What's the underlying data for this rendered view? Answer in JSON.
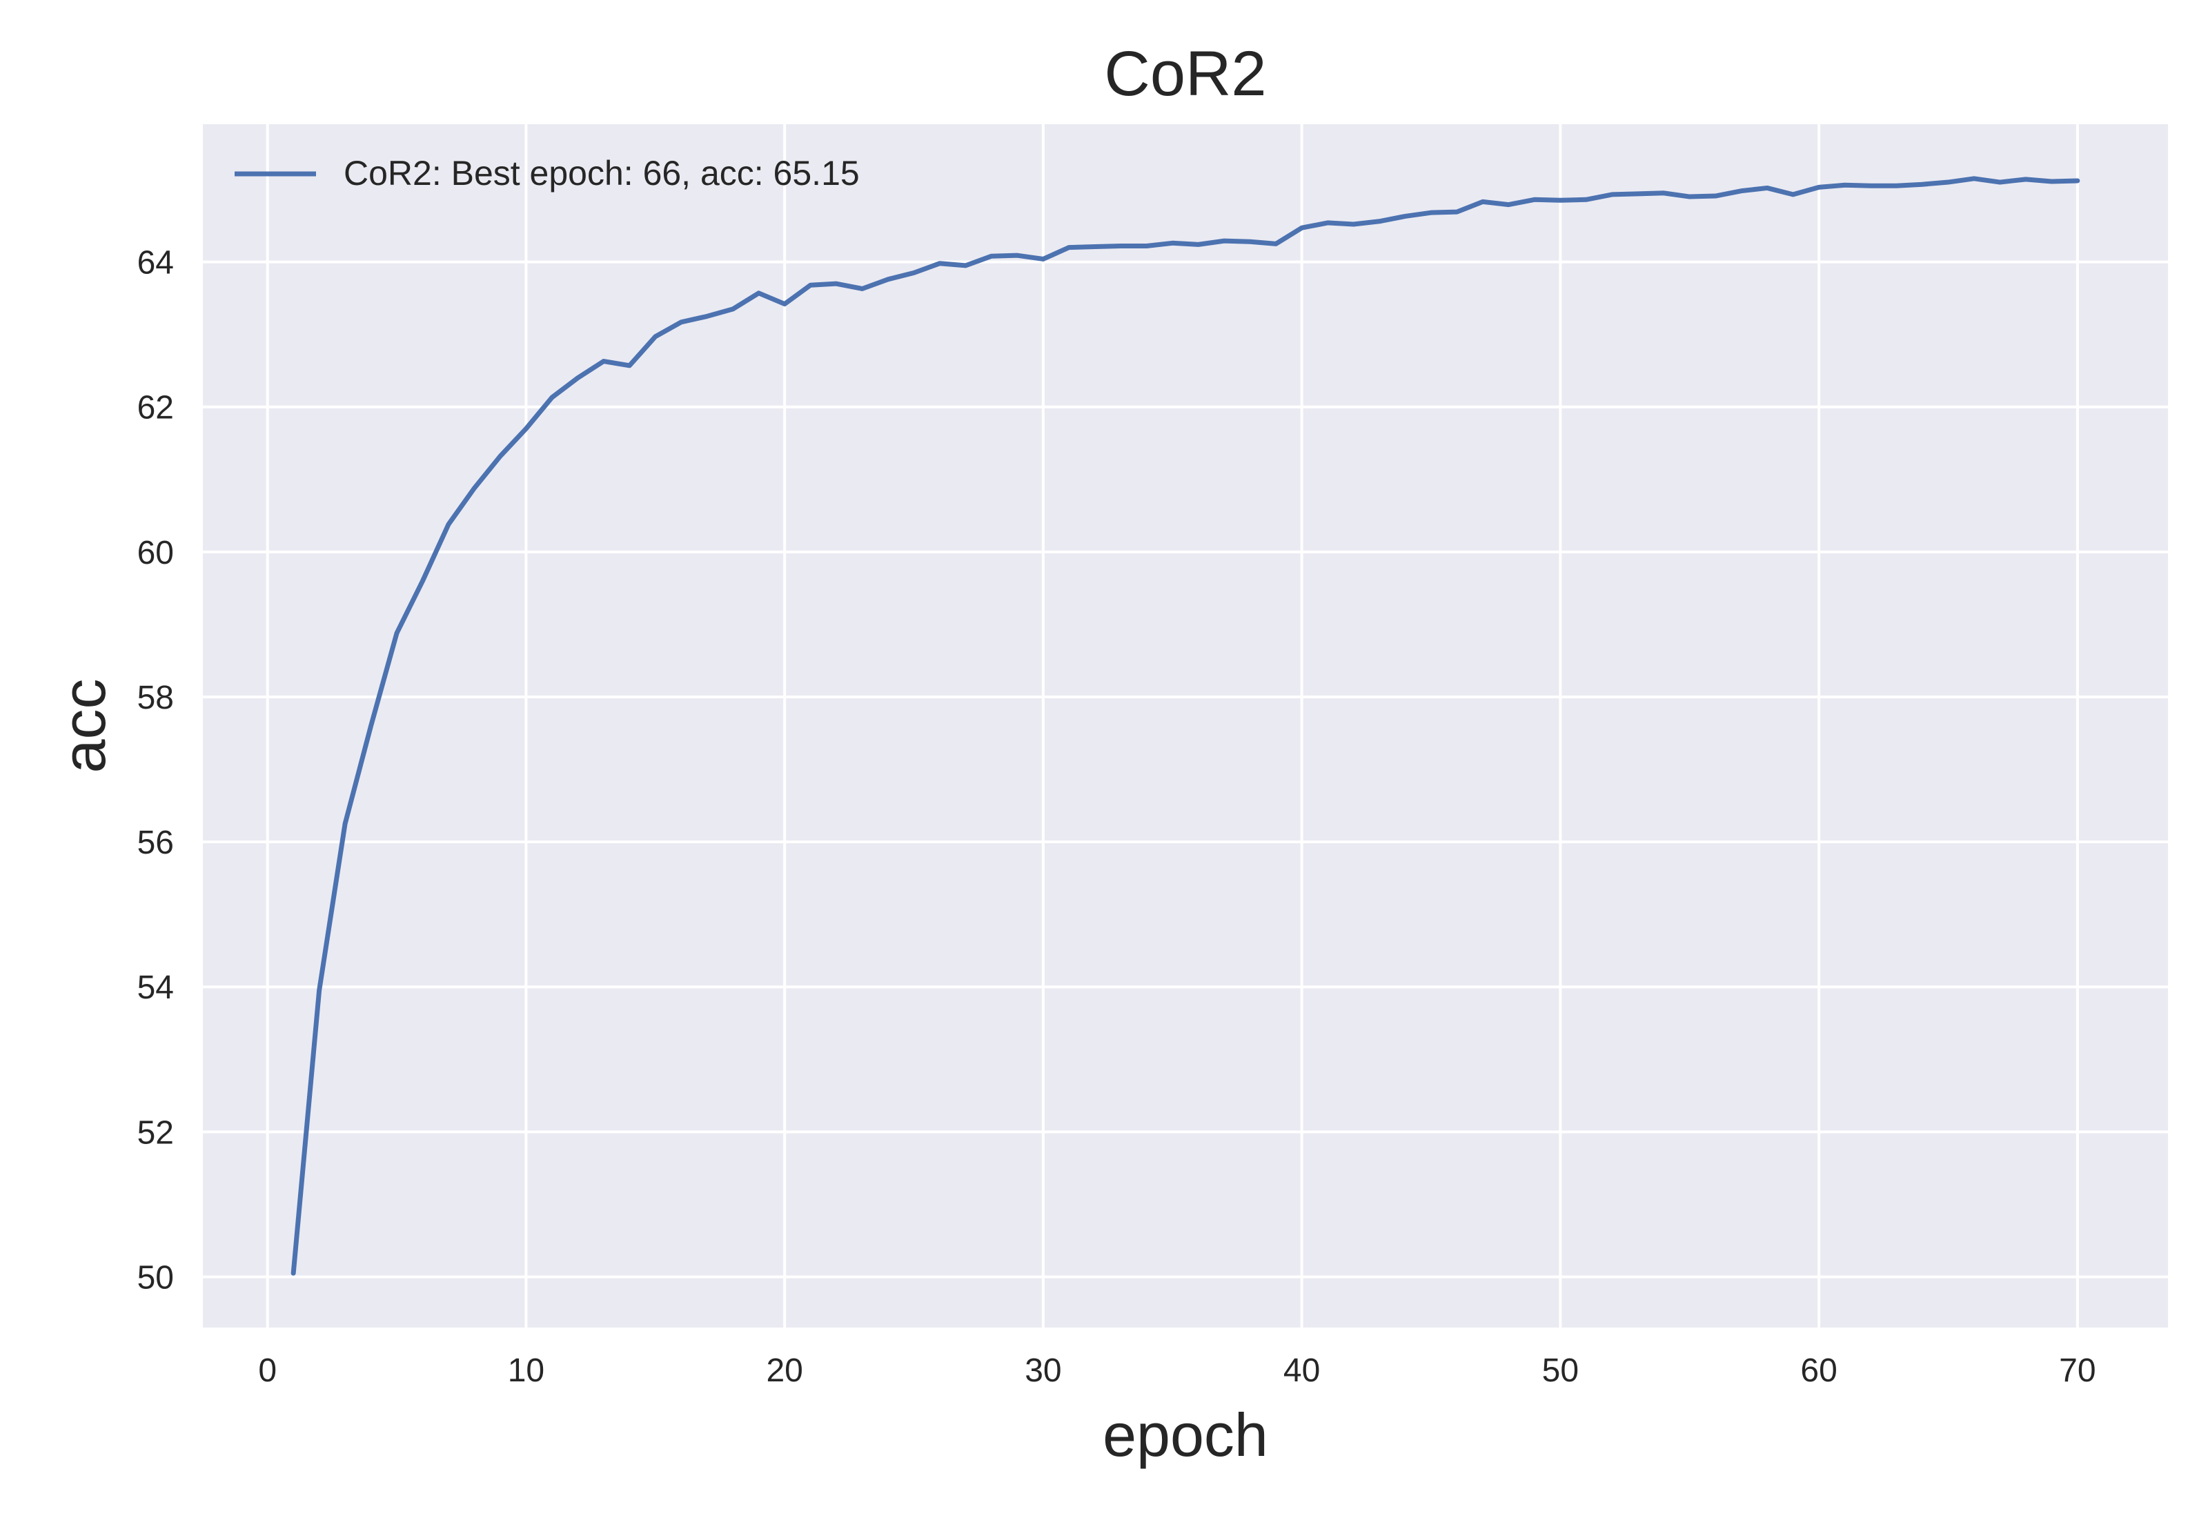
{
  "chart_data": {
    "type": "line",
    "title": "CoR2",
    "xlabel": "epoch",
    "ylabel": "acc",
    "xlim": [
      -2.5,
      73.5
    ],
    "ylim": [
      49.3,
      65.9
    ],
    "xticks": [
      0,
      10,
      20,
      30,
      40,
      50,
      60,
      70
    ],
    "yticks": [
      50,
      52,
      54,
      56,
      58,
      60,
      62,
      64
    ],
    "grid": true,
    "legend_position": "top-left",
    "style": {
      "background": "#eaeaf2",
      "grid_color": "#ffffff",
      "line_color": "#4c72b0"
    },
    "series": [
      {
        "name": "CoR2: Best epoch: 66, acc: 65.15",
        "x": [
          1,
          2,
          3,
          4,
          5,
          6,
          7,
          8,
          9,
          10,
          11,
          12,
          13,
          14,
          15,
          16,
          17,
          18,
          19,
          20,
          21,
          22,
          23,
          24,
          25,
          26,
          27,
          28,
          29,
          30,
          31,
          32,
          33,
          34,
          35,
          36,
          37,
          38,
          39,
          40,
          41,
          42,
          43,
          44,
          45,
          46,
          47,
          48,
          49,
          50,
          51,
          52,
          53,
          54,
          55,
          56,
          57,
          58,
          59,
          60,
          61,
          62,
          63,
          64,
          65,
          66,
          67,
          68,
          69,
          70
        ],
        "values": [
          50.05,
          53.95,
          56.25,
          57.6,
          58.88,
          59.6,
          60.38,
          60.88,
          61.32,
          61.7,
          62.13,
          62.4,
          62.63,
          62.57,
          62.97,
          63.17,
          63.25,
          63.35,
          63.57,
          63.42,
          63.68,
          63.7,
          63.63,
          63.76,
          63.85,
          63.98,
          63.95,
          64.08,
          64.09,
          64.04,
          64.2,
          64.21,
          64.22,
          64.22,
          64.26,
          64.24,
          64.29,
          64.28,
          64.25,
          64.47,
          64.54,
          64.52,
          64.56,
          64.63,
          64.68,
          64.69,
          64.83,
          64.79,
          64.86,
          64.85,
          64.86,
          64.93,
          64.94,
          64.95,
          64.9,
          64.91,
          64.98,
          65.02,
          64.93,
          65.03,
          65.06,
          65.05,
          65.05,
          65.07,
          65.1,
          65.15,
          65.1,
          65.14,
          65.11,
          65.12
        ]
      }
    ]
  }
}
